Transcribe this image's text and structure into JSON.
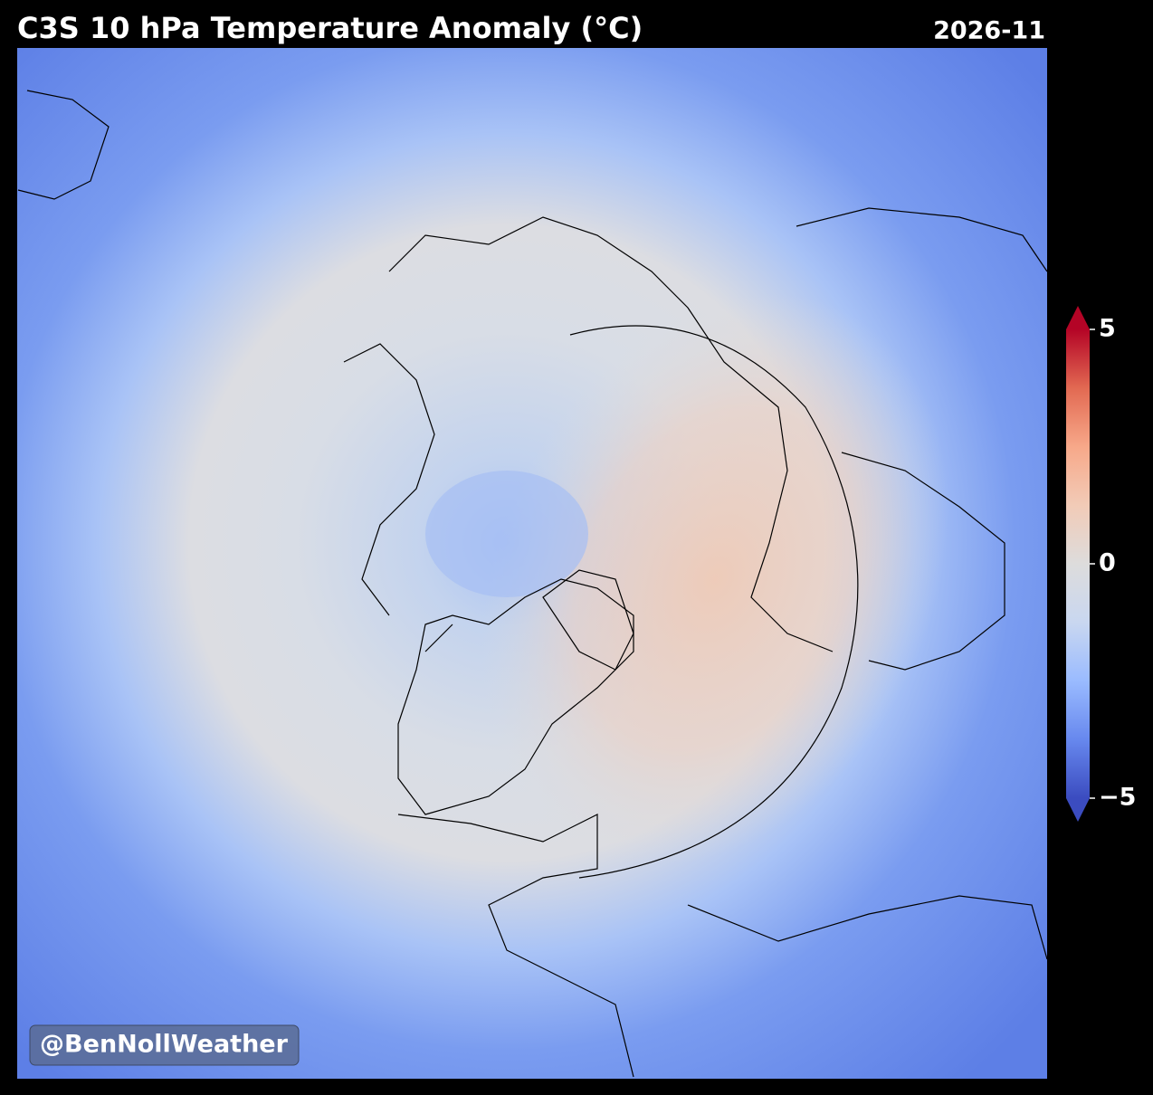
{
  "chart_data": {
    "type": "map",
    "title": "C3S 10 hPa Temperature Anomaly (°C)",
    "subtitle": "2026-11",
    "annotation": "@BenNollWeather",
    "colorbar": {
      "lim": [
        -5,
        5
      ],
      "ticks": [
        5,
        0,
        {
          "value": -5,
          "label": "−5"
        }
      ],
      "colors": [
        "#3b4cc0",
        "#6788ee",
        "#9abbff",
        "#c9d7f0",
        "#dddcdc",
        "#f2cbb7",
        "#f7a889",
        "#e26952",
        "#b40426"
      ]
    }
  }
}
